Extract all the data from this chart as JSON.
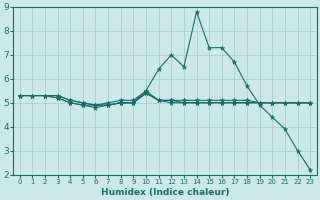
{
  "xlabel": "Humidex (Indice chaleur)",
  "ylabel": "",
  "xlim": [
    -0.5,
    23.5
  ],
  "ylim": [
    2,
    9
  ],
  "yticks": [
    2,
    3,
    4,
    5,
    6,
    7,
    8,
    9
  ],
  "xticks": [
    0,
    1,
    2,
    3,
    4,
    5,
    6,
    7,
    8,
    9,
    10,
    11,
    12,
    13,
    14,
    15,
    16,
    17,
    18,
    19,
    20,
    21,
    22,
    23
  ],
  "background_color": "#cce8e8",
  "grid_color": "#aacfcf",
  "line_color": "#1a6b6b",
  "lines": [
    {
      "x": [
        0,
        1,
        2,
        3,
        4,
        5,
        6,
        7,
        8,
        9,
        10,
        11,
        12,
        13,
        14,
        15,
        16,
        17,
        18,
        19,
        20,
        21,
        22,
        23
      ],
      "y": [
        5.3,
        5.3,
        5.3,
        5.3,
        5.1,
        5.0,
        4.9,
        5.0,
        5.1,
        5.1,
        5.5,
        5.1,
        5.1,
        5.1,
        5.1,
        5.1,
        5.1,
        5.1,
        5.1,
        5.0,
        5.0,
        5.0,
        5.0,
        5.0
      ]
    },
    {
      "x": [
        0,
        1,
        2,
        3,
        4,
        5,
        6,
        7,
        8,
        9,
        10,
        11,
        12,
        13,
        14,
        15,
        16,
        17,
        18,
        19,
        20,
        21,
        22,
        23
      ],
      "y": [
        5.3,
        5.3,
        5.3,
        5.3,
        5.1,
        5.0,
        4.9,
        4.9,
        5.0,
        5.0,
        5.4,
        5.1,
        5.1,
        5.0,
        5.0,
        5.0,
        5.0,
        5.0,
        5.0,
        5.0,
        5.0,
        5.0,
        5.0,
        5.0
      ]
    },
    {
      "x": [
        0,
        1,
        2,
        3,
        4,
        5,
        6,
        7,
        8,
        9,
        10,
        11,
        12,
        13,
        14,
        15,
        16,
        17,
        18,
        19,
        20,
        21,
        22,
        23
      ],
      "y": [
        5.3,
        5.3,
        5.3,
        5.2,
        5.0,
        4.9,
        4.9,
        4.9,
        5.0,
        5.0,
        5.4,
        5.1,
        5.0,
        5.0,
        5.0,
        5.0,
        5.0,
        5.0,
        5.0,
        5.0,
        5.0,
        5.0,
        5.0,
        5.0
      ]
    },
    {
      "x": [
        0,
        1,
        2,
        3,
        4,
        5,
        6,
        7,
        8,
        9,
        10,
        11,
        12,
        13,
        14,
        15,
        16,
        17,
        18,
        19,
        20,
        21,
        22,
        23
      ],
      "y": [
        5.3,
        5.3,
        5.3,
        5.2,
        5.0,
        4.9,
        4.8,
        4.9,
        5.0,
        5.0,
        5.5,
        6.4,
        7.0,
        6.5,
        8.8,
        7.3,
        7.3,
        6.7,
        5.7,
        4.9,
        4.4,
        3.9,
        3.0,
        2.2
      ]
    }
  ]
}
